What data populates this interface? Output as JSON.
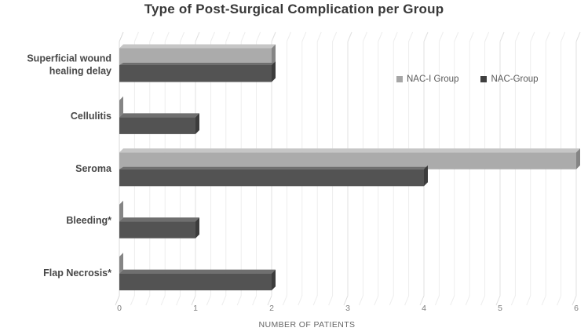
{
  "title": "Type of Post-Surgical Complication per Group",
  "chart_data": {
    "type": "bar",
    "orientation": "horizontal",
    "style": "3d",
    "title": "Type of Post-Surgical Complication per Group",
    "categories": [
      "Superficial wound healing delay",
      "Cellulitis",
      "Seroma",
      "Bleeding*",
      "Flap Necrosis*"
    ],
    "series": [
      {
        "name": "NAC-I Group",
        "values": [
          2,
          0,
          6,
          0,
          0
        ],
        "face_color": "#ababab",
        "top_color": "#c6c6c6",
        "cap_color": "#858585"
      },
      {
        "name": "NAC-Group",
        "values": [
          2,
          1,
          4,
          1,
          2
        ],
        "face_color": "#535353",
        "top_color": "#6f6f6f",
        "cap_color": "#3c3c3c"
      }
    ],
    "xlabel": "NUMBER OF PATIENTS",
    "xlim": [
      0,
      6
    ],
    "xticks": [
      0,
      1,
      2,
      3,
      4,
      5,
      6
    ],
    "minor_grid_step": 0.2,
    "grid": true,
    "legend_position": "upper-right-inside"
  },
  "colors": {
    "background": "#ffffff",
    "grid_minor": "#ededed",
    "grid_major": "#e0e0e0",
    "axis_line": "#d9d9d9",
    "title_text": "#383838",
    "category_text": "#474747",
    "tick_text": "#7d7d7d",
    "axis_label_text": "#666666",
    "legend_text": "#595959",
    "legend_marker_light": "#a6a6a6",
    "legend_marker_dark": "#3f3f3f"
  }
}
